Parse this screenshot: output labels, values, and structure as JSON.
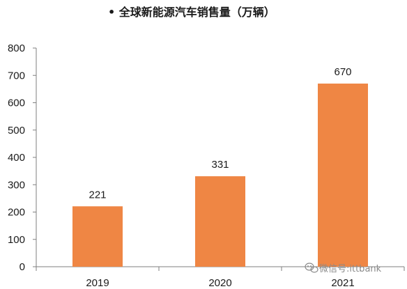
{
  "colors": {
    "bar": "#ef8644",
    "axis": "#7f7f7f",
    "text": "#1a1a1a",
    "watermark": "#8a8a8a"
  },
  "watermark": {
    "icon": "wechat-icon",
    "text": "微信号:ittbank"
  },
  "chart_data": {
    "type": "bar",
    "title": "•   全球新能源汽车销售量（万辆）",
    "xlabel": "",
    "ylabel": "",
    "categories": [
      "2019",
      "2020",
      "2021"
    ],
    "values": [
      221,
      331,
      670
    ],
    "data_labels": [
      "221",
      "331",
      "670"
    ],
    "ylim": [
      0,
      800
    ],
    "yticks": [
      "0",
      "100",
      "200",
      "300",
      "400",
      "500",
      "600",
      "700",
      "800"
    ],
    "grid": false,
    "legend": "none"
  }
}
